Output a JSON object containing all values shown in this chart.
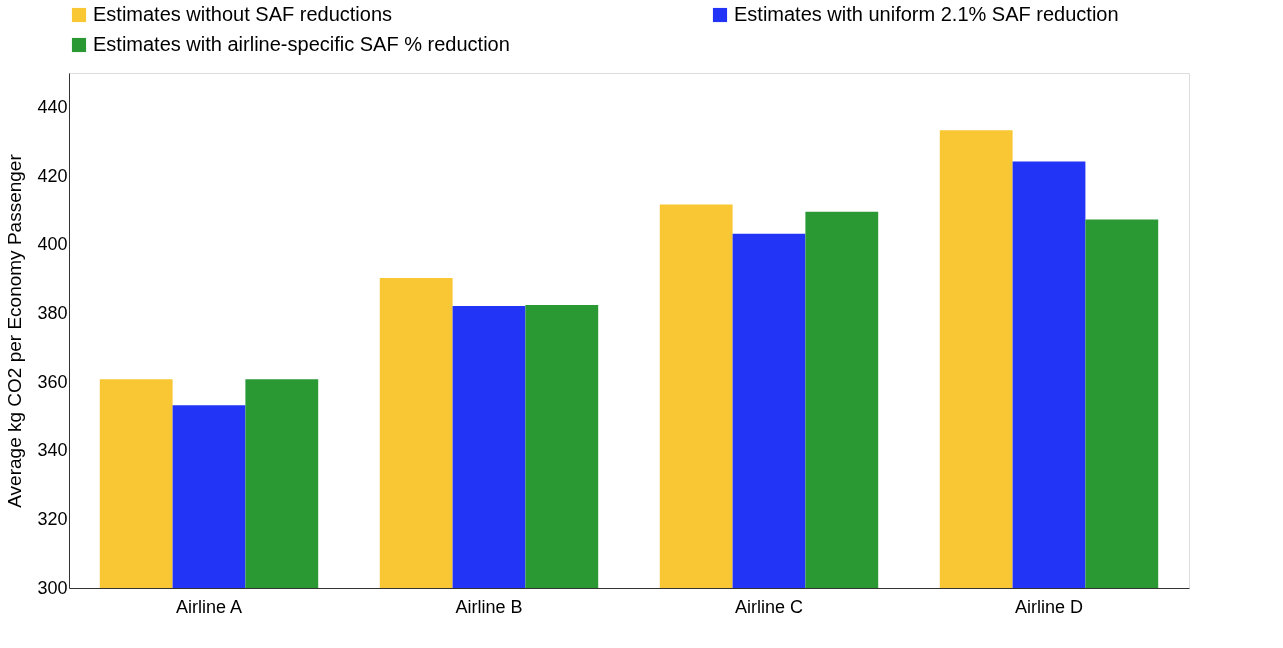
{
  "chart_data": {
    "type": "bar",
    "ylabel": "Average kg CO2 per Economy Passenger",
    "categories": [
      "Airline A",
      "Airline B",
      "Airline C",
      "Airline D"
    ],
    "series": [
      {
        "name": "Estimates without SAF reductions",
        "color": "#f9c733",
        "values": [
          360.8,
          390.3,
          411.7,
          433.3
        ]
      },
      {
        "name": "Estimates with uniform 2.1% SAF reduction",
        "color": "#2234f5",
        "values": [
          353.2,
          382.1,
          403.2,
          424.2
        ]
      },
      {
        "name": "Estimates with airline-specific SAF % reduction",
        "color": "#2a9934",
        "values": [
          360.8,
          382.4,
          409.6,
          407.3
        ]
      }
    ],
    "ylim": [
      300,
      450
    ],
    "yticks": [
      300,
      320,
      340,
      360,
      380,
      400,
      420,
      440
    ],
    "grid": false,
    "legend": "top"
  }
}
